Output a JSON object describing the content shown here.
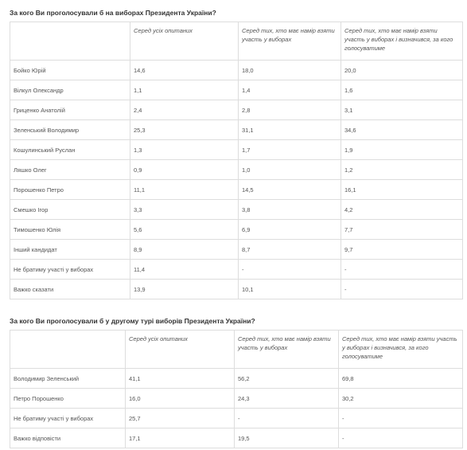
{
  "tables": [
    {
      "title": "За кого Ви проголосували б на виборах Президента України?",
      "header": [
        "Серед усіх опитаних",
        "Серед тих, хто має намір взяти участь у виборах",
        "Серед тих, хто має намір взяти участь у виборах і визначився, за кого голосуватиме"
      ],
      "rows": [
        [
          "Бойко Юрій",
          "14,6",
          "18,0",
          "20,0"
        ],
        [
          "Вілкул Олександр",
          "1,1",
          "1,4",
          "1,6"
        ],
        [
          "Гриценко Анатолій",
          "2,4",
          "2,8",
          "3,1"
        ],
        [
          "Зеленський Володимир",
          "25,3",
          "31,1",
          "34,6"
        ],
        [
          "Кошулинський Руслан",
          "1,3",
          "1,7",
          "1,9"
        ],
        [
          "Ляшко Олег",
          "0,9",
          "1,0",
          "1,2"
        ],
        [
          "Порошенко Петро",
          "11,1",
          "14,5",
          "16,1"
        ],
        [
          "Смешко Ігор",
          "3,3",
          "3,8",
          "4,2"
        ],
        [
          "Тимошенко Юлія",
          "5,6",
          "6,9",
          "7,7"
        ],
        [
          "Інший кандидат",
          "8,9",
          "8,7",
          "9,7"
        ],
        [
          "Не братиму участі у виборах",
          "11,4",
          "-",
          "-"
        ],
        [
          "Важко сказати",
          "13,9",
          "10,1",
          "-"
        ]
      ]
    },
    {
      "title": "За кого Ви проголосували б у другому турі виборів Президента України?",
      "header": [
        "Серед усіх опитаних",
        "Серед тих, хто має намір взяти участь у виборах",
        "Серед тих, хто має намір взяти участь у виборах і визначився, за кого голосуватиме"
      ],
      "rows": [
        [
          "Володимир Зеленський",
          "41,1",
          "56,2",
          "69,8"
        ],
        [
          "Петро Порошенко",
          "16,0",
          "24,3",
          "30,2"
        ],
        [
          "Не братиму участі у виборах",
          "25,7",
          "-",
          "-"
        ],
        [
          "Важко відповісти",
          "17,1",
          "19,5",
          "-"
        ]
      ]
    }
  ]
}
